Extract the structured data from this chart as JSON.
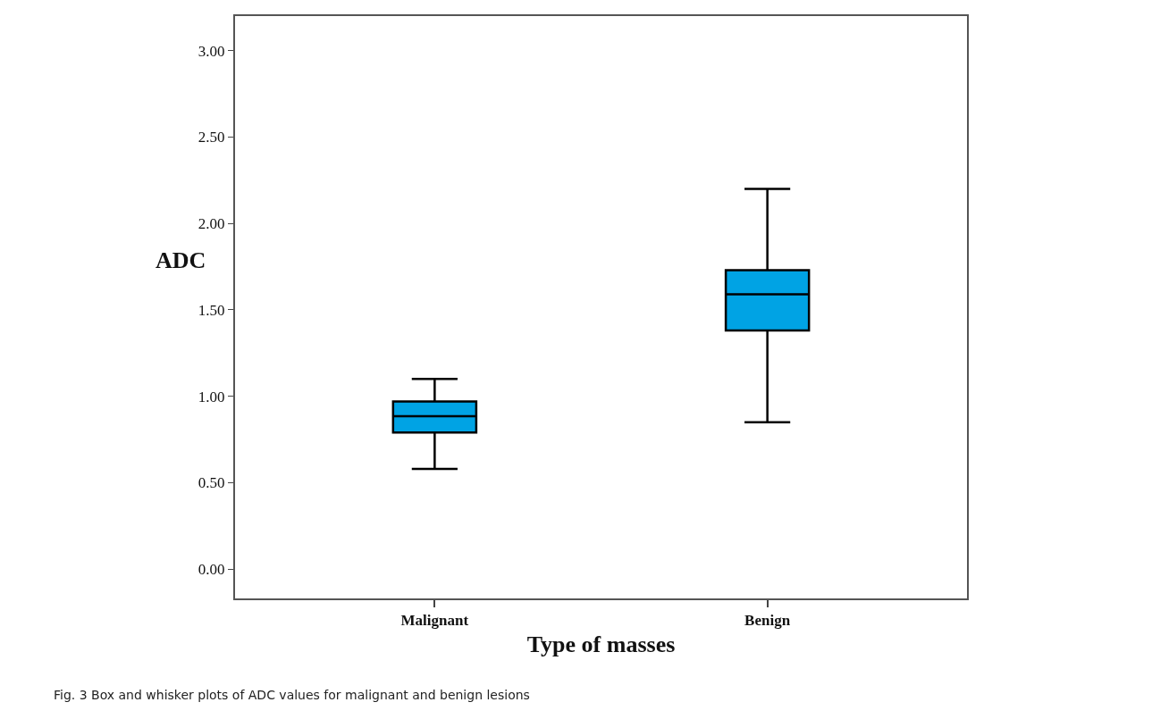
{
  "chart_data": {
    "type": "box",
    "xlabel": "Type of masses",
    "ylabel": "ADC",
    "categories": [
      "Malignant",
      "Benign"
    ],
    "boxes": [
      {
        "low": 0.58,
        "q1": 0.79,
        "median": 0.885,
        "q3": 0.97,
        "high": 1.1
      },
      {
        "low": 0.85,
        "q1": 1.38,
        "median": 1.59,
        "q3": 1.73,
        "high": 2.2
      }
    ],
    "color": "#00a3e4",
    "ylim": [
      -0.17,
      3.2
    ],
    "yticks": [
      {
        "value": 0,
        "label": "0.00"
      },
      {
        "value": 0.5,
        "label": "0.50"
      },
      {
        "value": 1,
        "label": "1.00"
      },
      {
        "value": 1.5,
        "label": "1.50"
      },
      {
        "value": 2,
        "label": "2.00"
      },
      {
        "value": 2.5,
        "label": "2.50"
      },
      {
        "value": 3,
        "label": "3.00"
      }
    ],
    "annotations": [
      "Fig. 3 Box and whisker plots of ADC values for malignant and benign lesions"
    ]
  }
}
